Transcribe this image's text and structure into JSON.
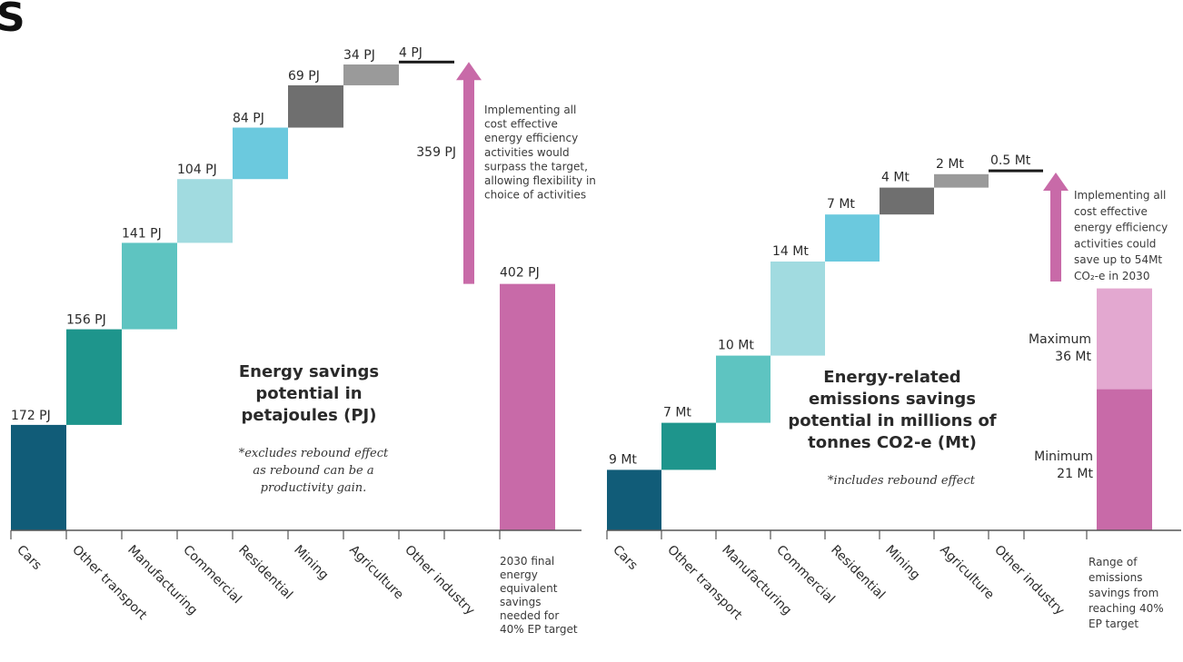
{
  "corner_glyph": "S",
  "chart_data": [
    {
      "type": "bar",
      "subtype": "waterfall",
      "title": "Energy savings potential in petajoules (PJ)",
      "title_lines": [
        "Energy savings",
        "potential in",
        "petajoules (PJ)"
      ],
      "subtitle_lines": [
        "*excludes rebound effect",
        "as rebound can be a",
        "productivity gain."
      ],
      "unit": "PJ",
      "ylim": [
        0,
        570
      ],
      "grid": false,
      "categories": [
        "Cars",
        "Other transport",
        "Manufacturing",
        "Commercial",
        "Residential",
        "Mining",
        "Agriculture",
        "Other industry"
      ],
      "values": [
        172,
        156,
        141,
        104,
        84,
        69,
        34,
        4
      ],
      "value_labels": [
        "172 PJ",
        "156 PJ",
        "141 PJ",
        "104 PJ",
        "84 PJ",
        "69 PJ",
        "34 PJ",
        "4 PJ"
      ],
      "colors": [
        "#115c78",
        "#1e958c",
        "#5ec4c1",
        "#a1dbe0",
        "#6bc9de",
        "#6f6f6f",
        "#9a9a9a",
        "#1a1a1a"
      ],
      "surplus": {
        "value": 359,
        "label": "359 PJ",
        "color": "#c86aa8"
      },
      "annotation_lines": [
        "Implementing all",
        "cost effective",
        "energy efficiency",
        "activities would",
        "surpass the target,",
        "allowing flexibility in",
        "choice of activities"
      ],
      "target": {
        "value": 402,
        "label": "402 PJ",
        "color": "#c86aa8",
        "category_lines": [
          "2030 final",
          "energy",
          "equivalent",
          "savings",
          "needed for",
          "40% EP target"
        ]
      }
    },
    {
      "type": "bar",
      "subtype": "waterfall",
      "title": "Energy-related emissions savings potential in millions of tonnes CO2-e (Mt)",
      "title_lines": [
        "Energy-related",
        "emissions savings",
        "potential in millions of",
        "tonnes CO2-e (Mt)"
      ],
      "subtitle_lines": [
        "*includes rebound effect"
      ],
      "unit": "Mt",
      "ylim": [
        0,
        70
      ],
      "grid": false,
      "categories": [
        "Cars",
        "Other transport",
        "Manufacturing",
        "Commercial",
        "Residential",
        "Mining",
        "Agriculture",
        "Other industry"
      ],
      "values": [
        9,
        7,
        10,
        14,
        7,
        4,
        2,
        0.5
      ],
      "value_labels": [
        "9 Mt",
        "7 Mt",
        "10 Mt",
        "14 Mt",
        "7 Mt",
        "4 Mt",
        "2 Mt",
        "0.5 Mt"
      ],
      "colors": [
        "#115c78",
        "#1e958c",
        "#5ec4c1",
        "#a1dbe0",
        "#6bc9de",
        "#6f6f6f",
        "#9a9a9a",
        "#1a1a1a"
      ],
      "annotation_lines": [
        "Implementing all",
        "cost effective",
        "energy efficiency",
        "activities could",
        "save up to 54Mt",
        "CO₂-e in 2030"
      ],
      "arrow_color": "#c86aa8",
      "range": {
        "minimum": 21,
        "maximum": 36,
        "min_label_lines": [
          "Minimum",
          "21 Mt"
        ],
        "max_label_lines": [
          "Maximum",
          "36 Mt"
        ],
        "min_color": "#c86aa8",
        "max_color": "#e3a8d0",
        "category_lines": [
          "Range of",
          "emissions",
          "savings from",
          "reaching 40%",
          "EP target"
        ]
      }
    }
  ]
}
